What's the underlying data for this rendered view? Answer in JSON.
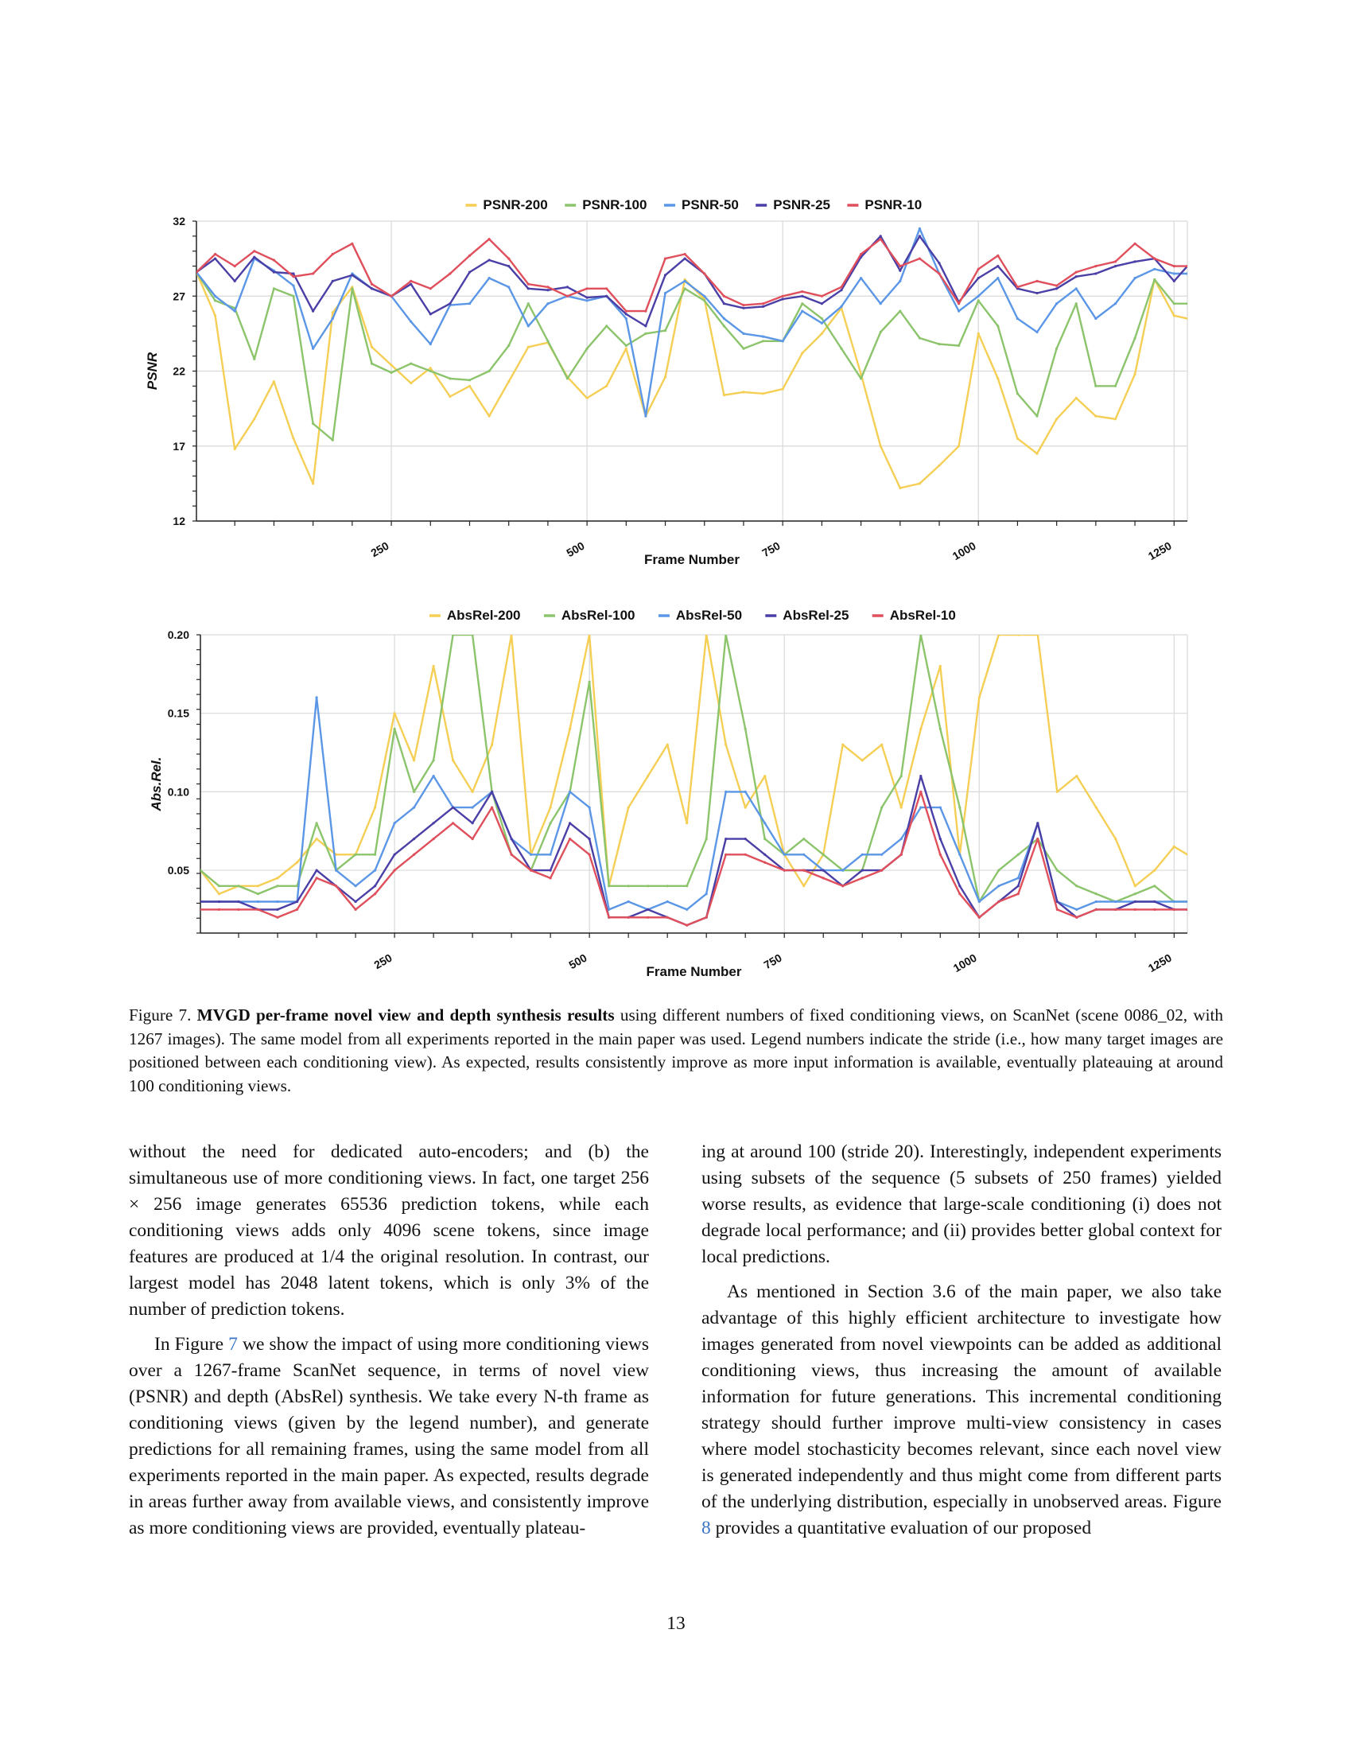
{
  "colors": {
    "stride_200": "#f5cf55",
    "stride_100": "#8cc46c",
    "stride_50": "#5b97e6",
    "stride_25": "#4a3fa6",
    "stride_10": "#df4f5c",
    "grid": "#d9d9d9"
  },
  "chart_data": [
    {
      "type": "line",
      "xlabel": "Frame Number",
      "ylabel": "PSNR",
      "xlim": [
        1,
        1267
      ],
      "ylim": [
        12,
        32
      ],
      "x_ticks": [
        250,
        500,
        750,
        1000,
        1250
      ],
      "y_ticks": [
        12,
        17,
        22,
        27,
        32
      ],
      "grid": true,
      "legend_position": "top-center",
      "x": [
        1,
        25,
        50,
        75,
        100,
        125,
        150,
        175,
        200,
        225,
        250,
        275,
        300,
        325,
        350,
        375,
        400,
        425,
        450,
        475,
        500,
        525,
        550,
        575,
        600,
        625,
        650,
        675,
        700,
        725,
        750,
        775,
        800,
        825,
        850,
        875,
        900,
        925,
        950,
        975,
        1000,
        1025,
        1050,
        1075,
        1100,
        1125,
        1150,
        1175,
        1200,
        1225,
        1250,
        1267
      ],
      "series": [
        {
          "name": "PSNR-200",
          "values": [
            28.6,
            25.7,
            16.8,
            18.8,
            21.3,
            17.5,
            14.5,
            25.9,
            27.6,
            23.6,
            22.4,
            21.2,
            22.2,
            20.3,
            21.0,
            19.0,
            21.3,
            23.6,
            23.9,
            21.6,
            20.2,
            21.0,
            23.5,
            19.0,
            21.6,
            28.1,
            26.8,
            20.4,
            20.6,
            20.5,
            20.8,
            23.2,
            24.5,
            26.2,
            21.8,
            17.0,
            14.2,
            14.5,
            15.7,
            17.0,
            24.5,
            21.5,
            17.5,
            16.5,
            18.8,
            20.2,
            19.0,
            18.8,
            21.8,
            28.1,
            25.7,
            25.5
          ]
        },
        {
          "name": "PSNR-100",
          "values": [
            28.6,
            26.7,
            26.2,
            22.8,
            27.5,
            27.0,
            18.5,
            17.4,
            27.5,
            22.5,
            21.9,
            22.5,
            22.0,
            21.5,
            21.4,
            22.0,
            23.7,
            26.5,
            24.0,
            21.5,
            23.5,
            25.0,
            23.7,
            24.5,
            24.7,
            27.5,
            26.7,
            25.0,
            23.5,
            24.0,
            24.0,
            26.5,
            25.5,
            23.5,
            21.5,
            24.6,
            26.0,
            24.2,
            23.8,
            23.7,
            26.7,
            25.0,
            20.5,
            19.0,
            23.5,
            26.5,
            21.0,
            21.0,
            24.2,
            28.1,
            26.5,
            26.5
          ]
        },
        {
          "name": "PSNR-50",
          "values": [
            28.6,
            27.0,
            26.0,
            29.5,
            28.7,
            27.7,
            23.5,
            25.5,
            28.5,
            27.5,
            27.0,
            25.3,
            23.8,
            26.4,
            26.5,
            28.2,
            27.6,
            25.0,
            26.5,
            27.0,
            26.7,
            27.0,
            25.5,
            19.0,
            27.2,
            28.0,
            27.0,
            25.5,
            24.5,
            24.3,
            24.0,
            26.0,
            25.2,
            26.3,
            28.2,
            26.5,
            28.0,
            31.5,
            28.5,
            26.0,
            27.0,
            28.2,
            25.5,
            24.6,
            26.5,
            27.5,
            25.5,
            26.5,
            28.2,
            28.8,
            28.5,
            28.5
          ]
        },
        {
          "name": "PSNR-25",
          "values": [
            28.6,
            29.5,
            28.0,
            29.6,
            28.6,
            28.5,
            26.0,
            28.0,
            28.4,
            27.5,
            27.0,
            27.8,
            25.8,
            26.5,
            28.6,
            29.4,
            29.0,
            27.5,
            27.4,
            27.6,
            26.9,
            27.0,
            25.8,
            25.0,
            28.4,
            29.5,
            28.5,
            26.5,
            26.2,
            26.3,
            26.8,
            27.0,
            26.5,
            27.4,
            29.6,
            31.0,
            28.7,
            31.0,
            29.2,
            26.6,
            28.2,
            29.0,
            27.5,
            27.2,
            27.5,
            28.3,
            28.5,
            29.0,
            29.3,
            29.5,
            28.0,
            29.0
          ]
        },
        {
          "name": "PSNR-10",
          "values": [
            28.6,
            29.8,
            29.0,
            30.0,
            29.4,
            28.3,
            28.5,
            29.8,
            30.5,
            27.8,
            27.0,
            28.0,
            27.5,
            28.5,
            29.7,
            30.8,
            29.5,
            27.8,
            27.6,
            27.0,
            27.5,
            27.5,
            26.0,
            26.0,
            29.5,
            29.8,
            28.5,
            27.0,
            26.4,
            26.5,
            27.0,
            27.3,
            27.0,
            27.6,
            29.8,
            30.8,
            29.0,
            29.5,
            28.5,
            26.5,
            28.8,
            29.7,
            27.6,
            28.0,
            27.7,
            28.6,
            29.0,
            29.3,
            30.5,
            29.5,
            29.0,
            29.0
          ]
        }
      ]
    },
    {
      "type": "line",
      "xlabel": "Frame Number",
      "ylabel": "Abs.Rel.",
      "xlim": [
        1,
        1267
      ],
      "ylim": [
        0.01,
        0.2
      ],
      "x_ticks": [
        250,
        500,
        750,
        1000,
        1250
      ],
      "y_ticks": [
        0.05,
        0.1,
        0.15,
        0.2
      ],
      "y_tick_labels": [
        "0.05",
        "0.10",
        "0.15",
        "0.20"
      ],
      "grid": true,
      "legend_position": "top-center",
      "x": [
        1,
        25,
        50,
        75,
        100,
        125,
        150,
        175,
        200,
        225,
        250,
        275,
        300,
        325,
        350,
        375,
        400,
        425,
        450,
        475,
        500,
        525,
        550,
        575,
        600,
        625,
        650,
        675,
        700,
        725,
        750,
        775,
        800,
        825,
        850,
        875,
        900,
        925,
        950,
        975,
        1000,
        1025,
        1050,
        1075,
        1100,
        1125,
        1150,
        1175,
        1200,
        1225,
        1250,
        1267
      ],
      "series": [
        {
          "name": "AbsRel-200",
          "values": [
            0.05,
            0.035,
            0.04,
            0.04,
            0.045,
            0.055,
            0.07,
            0.06,
            0.06,
            0.09,
            0.15,
            0.12,
            0.18,
            0.12,
            0.1,
            0.13,
            0.2,
            0.06,
            0.09,
            0.14,
            0.2,
            0.04,
            0.09,
            0.11,
            0.13,
            0.08,
            0.2,
            0.13,
            0.09,
            0.11,
            0.06,
            0.04,
            0.06,
            0.13,
            0.12,
            0.13,
            0.09,
            0.14,
            0.18,
            0.06,
            0.16,
            0.2,
            0.2,
            0.2,
            0.1,
            0.11,
            0.09,
            0.07,
            0.04,
            0.05,
            0.065,
            0.06
          ]
        },
        {
          "name": "AbsRel-100",
          "values": [
            0.05,
            0.04,
            0.04,
            0.035,
            0.04,
            0.04,
            0.08,
            0.05,
            0.06,
            0.06,
            0.14,
            0.1,
            0.12,
            0.2,
            0.2,
            0.1,
            0.06,
            0.05,
            0.08,
            0.1,
            0.17,
            0.04,
            0.04,
            0.04,
            0.04,
            0.04,
            0.07,
            0.2,
            0.14,
            0.07,
            0.06,
            0.07,
            0.06,
            0.05,
            0.05,
            0.09,
            0.11,
            0.2,
            0.14,
            0.09,
            0.03,
            0.05,
            0.06,
            0.07,
            0.05,
            0.04,
            0.035,
            0.03,
            0.035,
            0.04,
            0.03,
            0.03
          ]
        },
        {
          "name": "AbsRel-50",
          "values": [
            0.03,
            0.03,
            0.03,
            0.03,
            0.03,
            0.03,
            0.16,
            0.05,
            0.04,
            0.05,
            0.08,
            0.09,
            0.11,
            0.09,
            0.09,
            0.1,
            0.07,
            0.06,
            0.06,
            0.1,
            0.09,
            0.025,
            0.03,
            0.025,
            0.03,
            0.025,
            0.035,
            0.1,
            0.1,
            0.08,
            0.06,
            0.06,
            0.05,
            0.05,
            0.06,
            0.06,
            0.07,
            0.09,
            0.09,
            0.06,
            0.03,
            0.04,
            0.045,
            0.08,
            0.03,
            0.025,
            0.03,
            0.03,
            0.03,
            0.03,
            0.03,
            0.03
          ]
        },
        {
          "name": "AbsRel-25",
          "values": [
            0.03,
            0.03,
            0.03,
            0.025,
            0.025,
            0.03,
            0.05,
            0.04,
            0.03,
            0.04,
            0.06,
            0.07,
            0.08,
            0.09,
            0.08,
            0.1,
            0.07,
            0.05,
            0.05,
            0.08,
            0.07,
            0.02,
            0.02,
            0.025,
            0.02,
            0.015,
            0.02,
            0.07,
            0.07,
            0.06,
            0.05,
            0.05,
            0.05,
            0.04,
            0.05,
            0.05,
            0.06,
            0.11,
            0.07,
            0.04,
            0.02,
            0.03,
            0.04,
            0.08,
            0.03,
            0.02,
            0.025,
            0.025,
            0.03,
            0.03,
            0.025,
            0.025
          ]
        },
        {
          "name": "AbsRel-10",
          "values": [
            0.025,
            0.025,
            0.025,
            0.025,
            0.02,
            0.025,
            0.045,
            0.04,
            0.025,
            0.035,
            0.05,
            0.06,
            0.07,
            0.08,
            0.07,
            0.09,
            0.06,
            0.05,
            0.045,
            0.07,
            0.06,
            0.02,
            0.02,
            0.02,
            0.02,
            0.015,
            0.02,
            0.06,
            0.06,
            0.055,
            0.05,
            0.05,
            0.045,
            0.04,
            0.045,
            0.05,
            0.06,
            0.1,
            0.06,
            0.035,
            0.02,
            0.03,
            0.035,
            0.07,
            0.025,
            0.02,
            0.025,
            0.025,
            0.025,
            0.025,
            0.025,
            0.025
          ]
        }
      ]
    }
  ],
  "caption": {
    "label": "Figure 7.",
    "title": "MVGD per-frame novel view and depth synthesis results",
    "text": "using different numbers of fixed conditioning views, on ScanNet (scene 0086_02, with 1267 images). The same model from all experiments reported in the main paper was used. Legend numbers indicate the stride (i.e., how many target images are positioned between each conditioning view). As expected, results consistently improve as more input information is available, eventually plateauing at around 100 conditioning views."
  },
  "body": {
    "left_p1": "without the need for dedicated auto-encoders; and (b) the simultaneous use of more conditioning views. In fact, one target 256 × 256 image generates 65536 prediction tokens, while each conditioning views adds only 4096 scene tokens, since image features are produced at 1/4 the original resolution. In contrast, our largest model has 2048 latent tokens, which is only 3% of the number of prediction tokens.",
    "left_p2_a": "In Figure ",
    "left_p2_ref": "7",
    "left_p2_b": " we show the impact of using more conditioning views over a 1267-frame ScanNet sequence, in terms of novel view (PSNR) and depth (AbsRel) synthesis. We take every N-th frame as conditioning views (given by the legend number), and generate predictions for all remaining frames, using the same model from all experiments reported in the main paper. As expected, results degrade in areas further away from available views, and consistently improve as more conditioning views are provided, eventually plateau-",
    "right_p1": "ing at around 100 (stride 20). Interestingly, independent experiments using subsets of the sequence (5 subsets of 250 frames) yielded worse results, as evidence that large-scale conditioning (i) does not degrade local performance; and (ii) provides better global context for local predictions.",
    "right_p2_a": "As mentioned in Section 3.6 of the main paper, we also take advantage of this highly efficient architecture to investigate how images generated from novel viewpoints can be added as additional conditioning views, thus increasing the amount of available information for future generations. This incremental conditioning strategy should further improve multi-view consistency in cases where model stochasticity becomes relevant, since each novel view is generated independently and thus might come from different parts of the underlying distribution, especially in unobserved areas. Figure ",
    "right_p2_ref": "8",
    "right_p2_b": " provides a quantitative evaluation of our proposed"
  },
  "page_number": "13"
}
